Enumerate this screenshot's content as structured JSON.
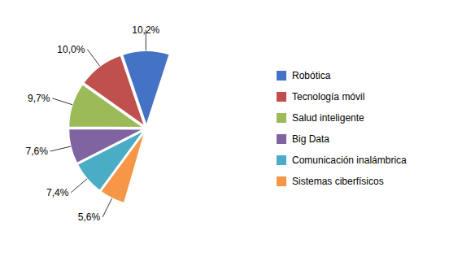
{
  "chart_data": {
    "type": "pie",
    "categories": [
      "Robótica",
      "Tecnología móvil",
      "Salud inteligente",
      "Big Data",
      "Comunicación inalámbrica",
      "Sistemas ciberfísicos"
    ],
    "values": [
      10.2,
      10.0,
      9.7,
      7.6,
      7.4,
      5.6
    ],
    "value_labels": [
      "10,2%",
      "10,0%",
      "9,7%",
      "7,6%",
      "7,4%",
      "5,6%"
    ],
    "colors": [
      "#4472C4",
      "#C0504D",
      "#9BBB59",
      "#8064A2",
      "#4BACC6",
      "#F79646"
    ],
    "data_labels": true,
    "legend": "right"
  }
}
